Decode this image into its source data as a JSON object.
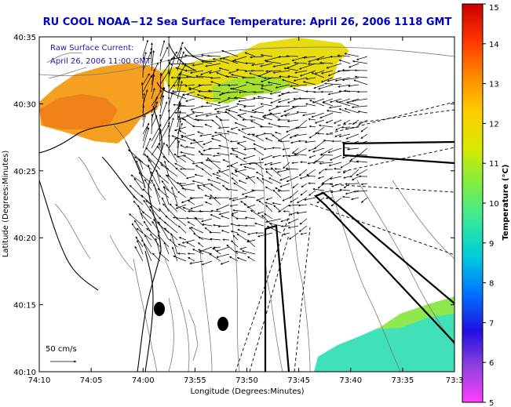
{
  "title": "RU COOL  NOAA−12  Sea Surface Temperature:  April 26, 2006 1118 GMT",
  "inset": {
    "line1": "Raw Surface Current:",
    "line2": "April 26, 2006 11:00 GMT"
  },
  "axes": {
    "xlabel": "Longitude (Degrees:Minutes)",
    "ylabel": "Latitude (Degrees:Minutes)",
    "xticks": [
      "74:10",
      "74:05",
      "74:00",
      "73:55",
      "73:50",
      "73:45",
      "73:40",
      "73:35",
      "73:3"
    ],
    "yticks": [
      "40:35",
      "40:30",
      "40:25",
      "40:20",
      "40:15",
      "40:10"
    ]
  },
  "colorbar": {
    "label": "Temperature (°C)",
    "ticks": [
      "15",
      "14",
      "13",
      "12",
      "11",
      "10",
      "9",
      "8",
      "7",
      "6",
      "5"
    ],
    "colors": [
      "#c80000",
      "#ff3300",
      "#ff8800",
      "#ffcc00",
      "#d8e800",
      "#80ee40",
      "#30e8a0",
      "#00c8e0",
      "#0070ff",
      "#2010e0",
      "#9040e0",
      "#ff40ff"
    ]
  },
  "scale_bar": {
    "label": "50 cm/s"
  },
  "colors": {
    "title": "#0000c0",
    "inset_text": "#1a1ab0"
  }
}
